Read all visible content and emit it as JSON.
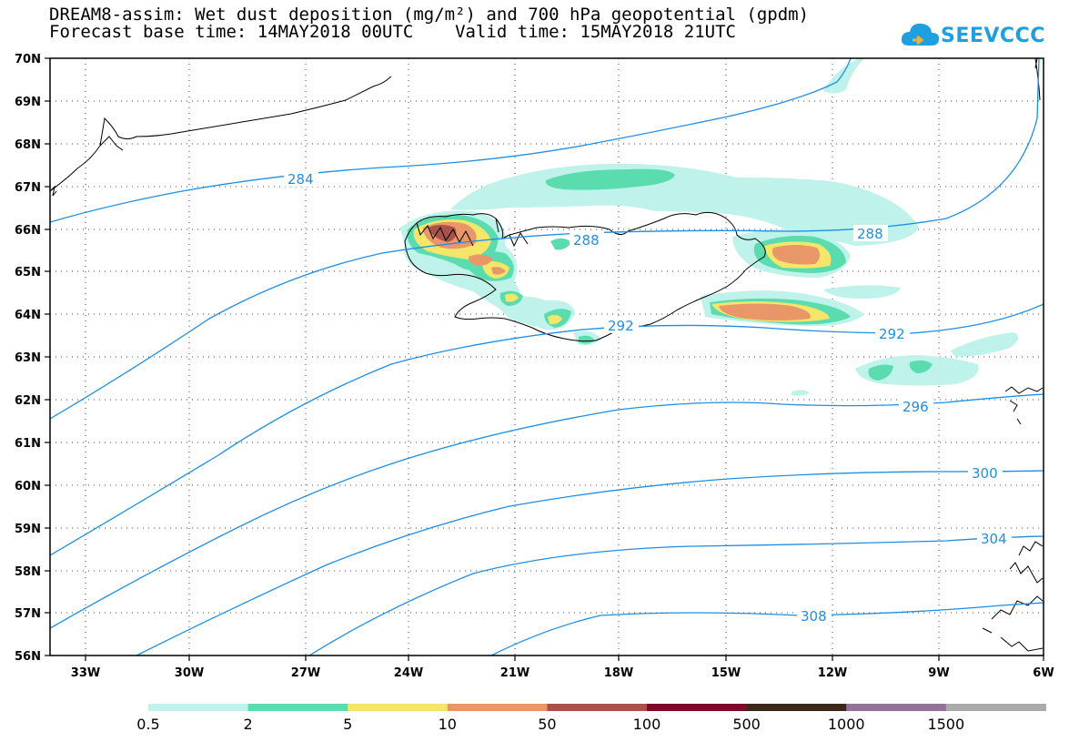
{
  "header": {
    "title_line1": "DREAM8-assim: Wet dust deposition (mg/m²) and 700 hPa geopotential (gpdm)",
    "title_line2": "Forecast base time: 14MAY2018 00UTC    Valid time: 15MAY2018 21UTC",
    "logo_text": "SEEVCCC",
    "logo_icon": "cloud-icon"
  },
  "axes": {
    "lat_labels": [
      "70N",
      "69N",
      "68N",
      "67N",
      "66N",
      "65N",
      "64N",
      "63N",
      "62N",
      "61N",
      "60N",
      "59N",
      "58N",
      "57N",
      "56N"
    ],
    "lon_labels": [
      "33W",
      "30W",
      "27W",
      "24W",
      "21W",
      "18W",
      "15W",
      "12W",
      "9W",
      "6W"
    ]
  },
  "contour_labels": [
    "284",
    "288",
    "288",
    "292",
    "292",
    "296",
    "300",
    "304",
    "308"
  ],
  "colorbar": {
    "colors": [
      "#bff2ea",
      "#5bdcae",
      "#f5e66a",
      "#e99668",
      "#a8524a",
      "#7d0a2a",
      "#3a2718",
      "#94709a",
      "#aaaaaa"
    ],
    "tick_labels": [
      "0.5",
      "2",
      "5",
      "10",
      "50",
      "100",
      "500",
      "1000",
      "1500"
    ]
  },
  "colors": {
    "contour": "#1e8fe6",
    "coast": "#000000"
  }
}
